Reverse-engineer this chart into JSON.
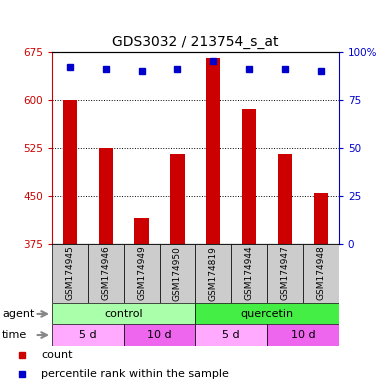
{
  "title": "GDS3032 / 213754_s_at",
  "samples": [
    "GSM174945",
    "GSM174946",
    "GSM174949",
    "GSM174950",
    "GSM174819",
    "GSM174944",
    "GSM174947",
    "GSM174948"
  ],
  "counts": [
    600,
    525,
    415,
    515,
    665,
    585,
    515,
    455
  ],
  "percentiles": [
    92,
    91,
    90,
    91,
    95,
    91,
    91,
    90
  ],
  "ylim_left": [
    375,
    675
  ],
  "ylim_right": [
    0,
    100
  ],
  "yticks_left": [
    375,
    450,
    525,
    600,
    675
  ],
  "yticks_right": [
    0,
    25,
    50,
    75,
    100
  ],
  "bar_color": "#cc0000",
  "dot_color": "#0000cc",
  "agent_groups": [
    {
      "label": "control",
      "start": 0,
      "end": 4,
      "color": "#aaffaa"
    },
    {
      "label": "quercetin",
      "start": 4,
      "end": 8,
      "color": "#44ee44"
    }
  ],
  "time_groups": [
    {
      "label": "5 d",
      "start": 0,
      "end": 2,
      "color": "#ffaaff"
    },
    {
      "label": "10 d",
      "start": 2,
      "end": 4,
      "color": "#ee66ee"
    },
    {
      "label": "5 d",
      "start": 4,
      "end": 6,
      "color": "#ffaaff"
    },
    {
      "label": "10 d",
      "start": 6,
      "end": 8,
      "color": "#ee66ee"
    }
  ],
  "axis_left_color": "#cc0000",
  "axis_right_color": "#0000cc",
  "sample_bg_color": "#cccccc",
  "bar_width": 0.4
}
